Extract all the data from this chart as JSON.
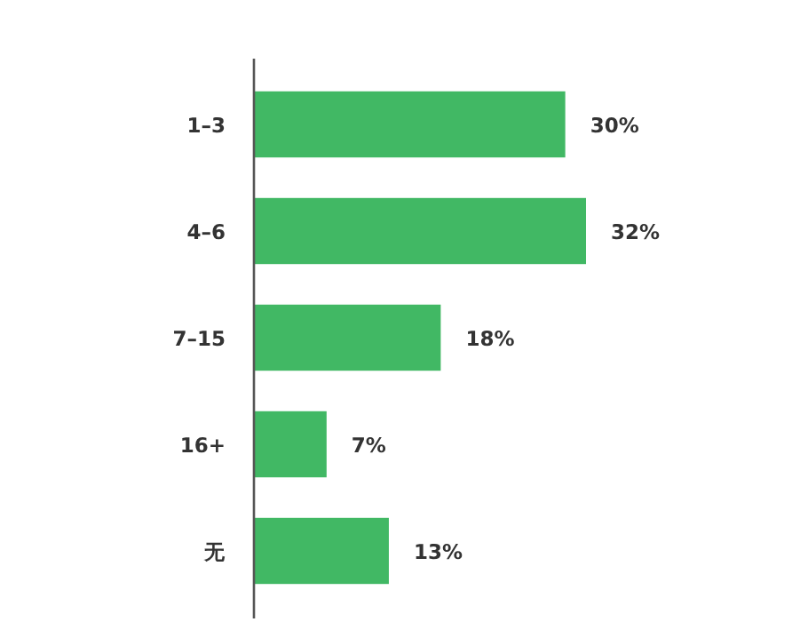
{
  "chart_data": {
    "type": "bar",
    "orientation": "horizontal",
    "categories": [
      "1–3",
      "4–6",
      "7–15",
      "16+",
      "无"
    ],
    "values": [
      30,
      32,
      18,
      7,
      13
    ],
    "color": "#41b864",
    "value_labels": [
      "30%",
      "32%",
      "18%",
      "7%",
      "13%"
    ]
  }
}
